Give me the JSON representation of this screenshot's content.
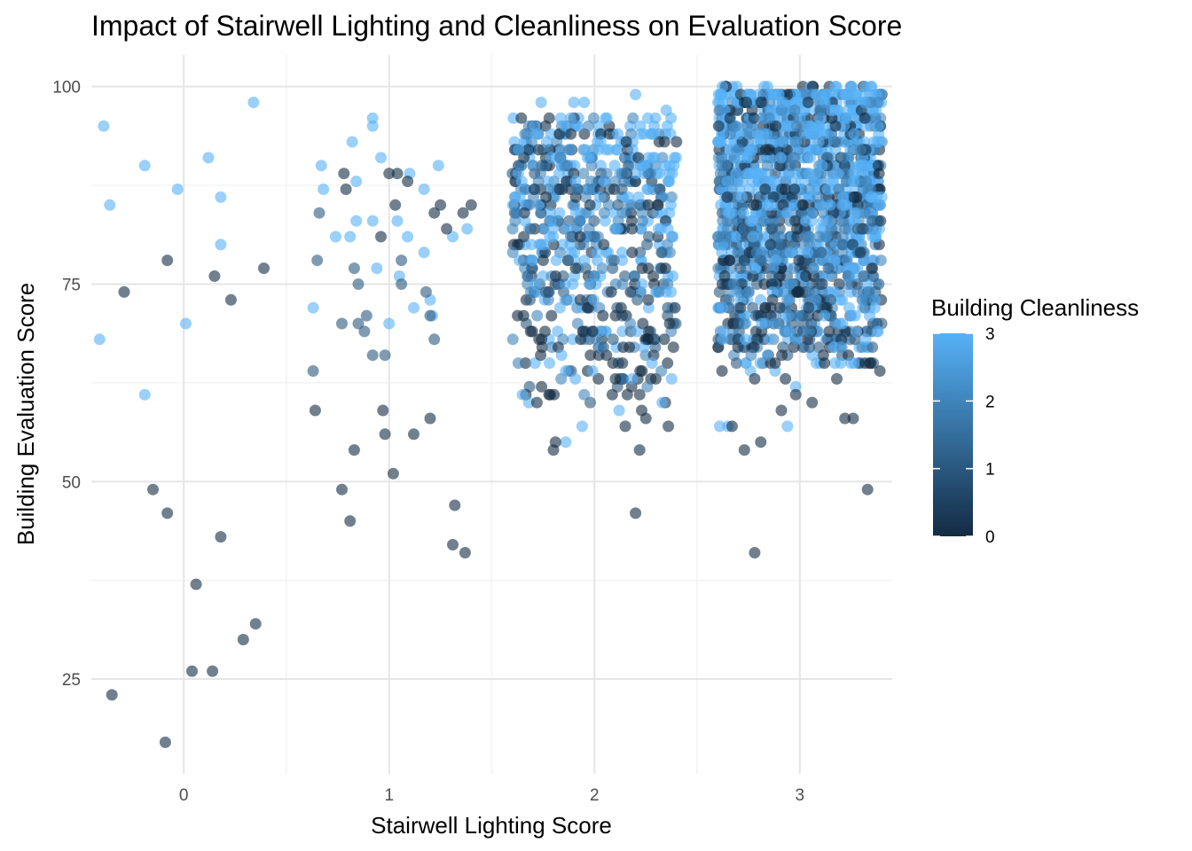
{
  "chart_data": {
    "type": "scatter",
    "title": "Impact of Stairwell Lighting and Cleanliness on Evaluation Score",
    "xlabel": "Stairwell Lighting Score",
    "ylabel": "Building Evaluation Score",
    "xlim": [
      -0.45,
      3.45
    ],
    "ylim": [
      13,
      104
    ],
    "x_ticks": [
      0,
      1,
      2,
      3
    ],
    "x_tick_labels": [
      "0",
      "1",
      "2",
      "3"
    ],
    "y_ticks": [
      25,
      50,
      75,
      100
    ],
    "y_tick_labels": [
      "25",
      "50",
      "75",
      "100"
    ],
    "grid": true,
    "jitter": "horizontal",
    "color_scale": {
      "title": "Building Cleanliness",
      "min": 0,
      "max": 3,
      "ticks": [
        0,
        1,
        2,
        3
      ],
      "tick_labels": [
        "0",
        "1",
        "2",
        "3"
      ],
      "low_color": "#132B43",
      "high_color": "#56B1F7",
      "legend_placement": "right"
    },
    "point_opacity": 0.6,
    "points": [
      {
        "x": -0.39,
        "y": 95,
        "c": 3
      },
      {
        "x": -0.36,
        "y": 85,
        "c": 3
      },
      {
        "x": -0.19,
        "y": 90,
        "c": 3
      },
      {
        "x": -0.03,
        "y": 87,
        "c": 3
      },
      {
        "x": 0.12,
        "y": 91,
        "c": 3
      },
      {
        "x": 0.18,
        "y": 86,
        "c": 3
      },
      {
        "x": 0.18,
        "y": 80,
        "c": 3
      },
      {
        "x": 0.34,
        "y": 98,
        "c": 3
      },
      {
        "x": 0.01,
        "y": 70,
        "c": 3
      },
      {
        "x": -0.41,
        "y": 68,
        "c": 3
      },
      {
        "x": -0.19,
        "y": 61,
        "c": 3
      },
      {
        "x": -0.08,
        "y": 78,
        "c": 0
      },
      {
        "x": -0.29,
        "y": 74,
        "c": 0
      },
      {
        "x": 0.15,
        "y": 76,
        "c": 0
      },
      {
        "x": 0.23,
        "y": 73,
        "c": 0
      },
      {
        "x": 0.39,
        "y": 77,
        "c": 0
      },
      {
        "x": -0.15,
        "y": 49,
        "c": 0
      },
      {
        "x": -0.08,
        "y": 46,
        "c": 0
      },
      {
        "x": 0.18,
        "y": 43,
        "c": 0
      },
      {
        "x": 0.06,
        "y": 37,
        "c": 0
      },
      {
        "x": 0.35,
        "y": 32,
        "c": 0
      },
      {
        "x": 0.29,
        "y": 30,
        "c": 0
      },
      {
        "x": 0.04,
        "y": 26,
        "c": 0
      },
      {
        "x": 0.14,
        "y": 26,
        "c": 0
      },
      {
        "x": -0.35,
        "y": 23,
        "c": 0
      },
      {
        "x": -0.09,
        "y": 17,
        "c": 0
      },
      {
        "x": 0.67,
        "y": 90,
        "c": 3
      },
      {
        "x": 0.68,
        "y": 87,
        "c": 3
      },
      {
        "x": 0.82,
        "y": 93,
        "c": 3
      },
      {
        "x": 0.84,
        "y": 88,
        "c": 3
      },
      {
        "x": 0.92,
        "y": 96,
        "c": 3
      },
      {
        "x": 0.92,
        "y": 95,
        "c": 3
      },
      {
        "x": 0.96,
        "y": 91,
        "c": 3
      },
      {
        "x": 0.74,
        "y": 81,
        "c": 3
      },
      {
        "x": 0.81,
        "y": 81,
        "c": 3
      },
      {
        "x": 0.84,
        "y": 83,
        "c": 3
      },
      {
        "x": 0.92,
        "y": 83,
        "c": 3
      },
      {
        "x": 0.94,
        "y": 77,
        "c": 3
      },
      {
        "x": 1.04,
        "y": 83,
        "c": 3
      },
      {
        "x": 1.09,
        "y": 81,
        "c": 3
      },
      {
        "x": 1.12,
        "y": 72,
        "c": 3
      },
      {
        "x": 1.17,
        "y": 87,
        "c": 3
      },
      {
        "x": 1.2,
        "y": 73,
        "c": 3
      },
      {
        "x": 1.24,
        "y": 90,
        "c": 3
      },
      {
        "x": 0.63,
        "y": 72,
        "c": 3
      },
      {
        "x": 1.0,
        "y": 70,
        "c": 3
      },
      {
        "x": 1.05,
        "y": 76,
        "c": 3
      },
      {
        "x": 1.17,
        "y": 79,
        "c": 3
      },
      {
        "x": 1.31,
        "y": 81,
        "c": 3
      },
      {
        "x": 1.38,
        "y": 82,
        "c": 3
      },
      {
        "x": 1.21,
        "y": 71,
        "c": 3
      },
      {
        "x": 1.1,
        "y": 89,
        "c": 3
      },
      {
        "x": 0.78,
        "y": 89,
        "c": 0
      },
      {
        "x": 0.79,
        "y": 87,
        "c": 0
      },
      {
        "x": 1.0,
        "y": 89,
        "c": 0
      },
      {
        "x": 1.04,
        "y": 89,
        "c": 0
      },
      {
        "x": 1.09,
        "y": 88,
        "c": 0
      },
      {
        "x": 1.03,
        "y": 85,
        "c": 0
      },
      {
        "x": 1.22,
        "y": 84,
        "c": 0
      },
      {
        "x": 1.25,
        "y": 85,
        "c": 0
      },
      {
        "x": 1.28,
        "y": 82,
        "c": 0
      },
      {
        "x": 1.36,
        "y": 84,
        "c": 0
      },
      {
        "x": 1.4,
        "y": 85,
        "c": 0
      },
      {
        "x": 0.96,
        "y": 81,
        "c": 0
      },
      {
        "x": 0.66,
        "y": 84,
        "c": 1
      },
      {
        "x": 0.65,
        "y": 78,
        "c": 1
      },
      {
        "x": 0.83,
        "y": 77,
        "c": 1
      },
      {
        "x": 0.85,
        "y": 75,
        "c": 1
      },
      {
        "x": 0.85,
        "y": 70,
        "c": 1
      },
      {
        "x": 0.89,
        "y": 71,
        "c": 1
      },
      {
        "x": 0.88,
        "y": 69,
        "c": 1
      },
      {
        "x": 0.77,
        "y": 70,
        "c": 1
      },
      {
        "x": 1.06,
        "y": 78,
        "c": 1
      },
      {
        "x": 1.06,
        "y": 75,
        "c": 1
      },
      {
        "x": 1.18,
        "y": 74,
        "c": 1
      },
      {
        "x": 1.2,
        "y": 71,
        "c": 1
      },
      {
        "x": 1.22,
        "y": 68,
        "c": 1
      },
      {
        "x": 0.92,
        "y": 66,
        "c": 1
      },
      {
        "x": 0.98,
        "y": 66,
        "c": 1
      },
      {
        "x": 0.63,
        "y": 64,
        "c": 1
      },
      {
        "x": 0.64,
        "y": 59,
        "c": 0
      },
      {
        "x": 0.97,
        "y": 59,
        "c": 0
      },
      {
        "x": 0.98,
        "y": 56,
        "c": 0
      },
      {
        "x": 1.12,
        "y": 56,
        "c": 0
      },
      {
        "x": 1.2,
        "y": 58,
        "c": 0
      },
      {
        "x": 0.83,
        "y": 54,
        "c": 0
      },
      {
        "x": 1.02,
        "y": 51,
        "c": 0
      },
      {
        "x": 0.77,
        "y": 49,
        "c": 0
      },
      {
        "x": 0.81,
        "y": 45,
        "c": 0
      },
      {
        "x": 1.32,
        "y": 47,
        "c": 0
      },
      {
        "x": 1.31,
        "y": 42,
        "c": 0
      },
      {
        "x": 1.37,
        "y": 41,
        "c": 0
      },
      {
        "x": 1.68,
        "y": 60,
        "c": 3
      },
      {
        "x": 1.94,
        "y": 57,
        "c": 3
      },
      {
        "x": 1.86,
        "y": 55,
        "c": 3
      },
      {
        "x": 2.12,
        "y": 59,
        "c": 3
      },
      {
        "x": 2.24,
        "y": 67,
        "c": 3
      },
      {
        "x": 2.28,
        "y": 65,
        "c": 3
      },
      {
        "x": 1.86,
        "y": 64,
        "c": 3
      },
      {
        "x": 1.84,
        "y": 66,
        "c": 3
      },
      {
        "x": 2.2,
        "y": 99,
        "c": 3
      },
      {
        "x": 1.9,
        "y": 98,
        "c": 3
      },
      {
        "x": 1.95,
        "y": 98,
        "c": 3
      },
      {
        "x": 1.74,
        "y": 98,
        "c": 3
      },
      {
        "x": 2.35,
        "y": 97,
        "c": 3
      },
      {
        "x": 2.26,
        "y": 96,
        "c": 3
      },
      {
        "x": 2.06,
        "y": 96,
        "c": 3
      },
      {
        "x": 1.8,
        "y": 54,
        "c": 0
      },
      {
        "x": 1.81,
        "y": 55,
        "c": 0
      },
      {
        "x": 1.72,
        "y": 60,
        "c": 0
      },
      {
        "x": 2.16,
        "y": 61,
        "c": 0
      },
      {
        "x": 2.22,
        "y": 61,
        "c": 0
      },
      {
        "x": 2.23,
        "y": 59,
        "c": 0
      },
      {
        "x": 2.15,
        "y": 57,
        "c": 0
      },
      {
        "x": 2.25,
        "y": 58,
        "c": 0
      },
      {
        "x": 2.22,
        "y": 54,
        "c": 0
      },
      {
        "x": 2.36,
        "y": 57,
        "c": 0
      },
      {
        "x": 2.2,
        "y": 46,
        "c": 0
      },
      {
        "x": 2.14,
        "y": 67,
        "c": 0
      },
      {
        "x": 2.17,
        "y": 67,
        "c": 0
      },
      {
        "x": 2.26,
        "y": 68,
        "c": 0
      },
      {
        "x": 1.99,
        "y": 69,
        "c": 0
      },
      {
        "x": 2.65,
        "y": 57,
        "c": 3
      },
      {
        "x": 2.61,
        "y": 57,
        "c": 3
      },
      {
        "x": 2.94,
        "y": 57,
        "c": 3
      },
      {
        "x": 2.98,
        "y": 62,
        "c": 3
      },
      {
        "x": 2.76,
        "y": 64,
        "c": 3
      },
      {
        "x": 2.88,
        "y": 64,
        "c": 3
      },
      {
        "x": 3.2,
        "y": 65,
        "c": 3
      },
      {
        "x": 3.25,
        "y": 65,
        "c": 3
      },
      {
        "x": 3.24,
        "y": 72,
        "c": 3
      },
      {
        "x": 3.12,
        "y": 71,
        "c": 3
      },
      {
        "x": 3.27,
        "y": 71,
        "c": 3
      },
      {
        "x": 3.38,
        "y": 69,
        "c": 3
      },
      {
        "x": 2.78,
        "y": 41,
        "c": 0
      },
      {
        "x": 2.81,
        "y": 55,
        "c": 0
      },
      {
        "x": 2.73,
        "y": 54,
        "c": 0
      },
      {
        "x": 3.33,
        "y": 49,
        "c": 0
      },
      {
        "x": 3.22,
        "y": 58,
        "c": 0
      },
      {
        "x": 3.26,
        "y": 58,
        "c": 0
      },
      {
        "x": 2.91,
        "y": 59,
        "c": 0
      },
      {
        "x": 3.06,
        "y": 60,
        "c": 0
      },
      {
        "x": 2.98,
        "y": 61,
        "c": 0
      },
      {
        "x": 2.93,
        "y": 63,
        "c": 0
      },
      {
        "x": 3.18,
        "y": 63,
        "c": 0
      },
      {
        "x": 2.67,
        "y": 57,
        "c": 0
      },
      {
        "x": 2.78,
        "y": 63,
        "c": 0
      },
      {
        "x": 3.12,
        "y": 65,
        "c": 0
      },
      {
        "x": 3.39,
        "y": 64,
        "c": 0
      },
      {
        "x": 3.34,
        "y": 65,
        "c": 0
      },
      {
        "x": 2.88,
        "y": 65,
        "c": 0
      }
    ],
    "clusters": [
      {
        "x_center": 2,
        "x_spread": 0.4,
        "y_min": 60,
        "y_max": 96,
        "count": 620,
        "c_top": 2.7,
        "c_bottom": 0.6
      },
      {
        "x_center": 3,
        "x_spread": 0.4,
        "y_min": 64,
        "y_max": 100,
        "count": 1500,
        "c_top": 3.0,
        "c_bottom": 0.9
      }
    ]
  }
}
